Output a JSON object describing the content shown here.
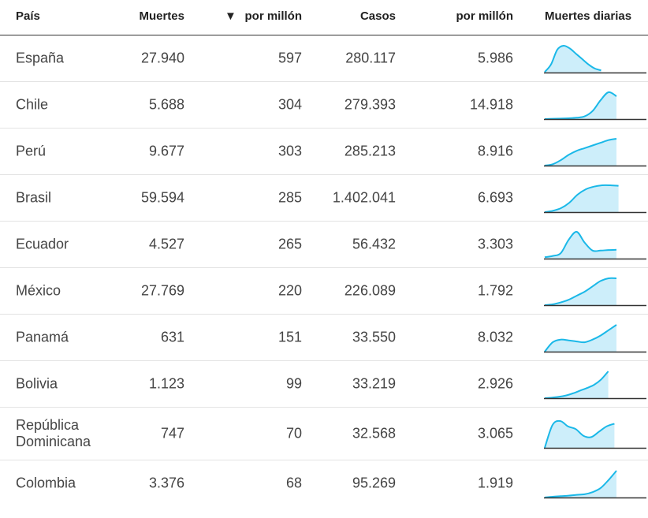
{
  "headers": {
    "country": "País",
    "deaths": "Muertes",
    "deaths_per_million": "por millón",
    "cases": "Casos",
    "cases_per_million": "por millón",
    "daily_deaths": "Muertes diarias"
  },
  "sort_indicator": "▼",
  "colors": {
    "line": "#1ab8e8",
    "fill": "#cdeefa",
    "baseline": "#333333"
  },
  "chart_data": {
    "type": "table",
    "columns": [
      "País",
      "Muertes",
      "por millón",
      "Casos",
      "por millón",
      "Muertes diarias"
    ],
    "rows": [
      {
        "country": "España",
        "deaths": "27.940",
        "deaths_pm": "597",
        "cases": "280.117",
        "cases_pm": "5.986",
        "daily": [
          0.02,
          0.3,
          0.85,
          1.0,
          0.9,
          0.7,
          0.5,
          0.3,
          0.15,
          0.08
        ],
        "extent": 0.55
      },
      {
        "country": "Chile",
        "deaths": "5.688",
        "deaths_pm": "304",
        "cases": "279.393",
        "cases_pm": "14.918",
        "daily": [
          0.0,
          0.01,
          0.02,
          0.03,
          0.05,
          0.1,
          0.3,
          0.7,
          1.0,
          0.85
        ],
        "extent": 0.7
      },
      {
        "country": "Perú",
        "deaths": "9.677",
        "deaths_pm": "303",
        "cases": "285.213",
        "cases_pm": "8.916",
        "daily": [
          0.0,
          0.05,
          0.2,
          0.4,
          0.55,
          0.65,
          0.75,
          0.85,
          0.95,
          1.0
        ],
        "extent": 0.7
      },
      {
        "country": "Brasil",
        "deaths": "59.594",
        "deaths_pm": "285",
        "cases": "1.402.041",
        "cases_pm": "6.693",
        "daily": [
          0.0,
          0.05,
          0.15,
          0.35,
          0.65,
          0.85,
          0.95,
          1.0,
          1.0,
          0.98
        ],
        "extent": 0.72
      },
      {
        "country": "Ecuador",
        "deaths": "4.527",
        "deaths_pm": "265",
        "cases": "56.432",
        "cases_pm": "3.303",
        "daily": [
          0.05,
          0.1,
          0.2,
          0.7,
          1.0,
          0.6,
          0.3,
          0.3,
          0.32,
          0.33
        ],
        "extent": 0.7
      },
      {
        "country": "México",
        "deaths": "27.769",
        "deaths_pm": "220",
        "cases": "226.089",
        "cases_pm": "1.792",
        "daily": [
          0.0,
          0.03,
          0.1,
          0.2,
          0.35,
          0.5,
          0.7,
          0.9,
          1.0,
          1.0
        ],
        "extent": 0.7
      },
      {
        "country": "Panamá",
        "deaths": "631",
        "deaths_pm": "151",
        "cases": "33.550",
        "cases_pm": "8.032",
        "daily": [
          0.0,
          0.35,
          0.45,
          0.42,
          0.38,
          0.35,
          0.45,
          0.6,
          0.8,
          1.0
        ],
        "extent": 0.7
      },
      {
        "country": "Bolivia",
        "deaths": "1.123",
        "deaths_pm": "99",
        "cases": "33.219",
        "cases_pm": "2.926",
        "daily": [
          0.0,
          0.02,
          0.05,
          0.1,
          0.18,
          0.28,
          0.38,
          0.5,
          0.7,
          1.0
        ],
        "extent": 0.62
      },
      {
        "country": "República Dominicana",
        "deaths": "747",
        "deaths_pm": "70",
        "cases": "32.568",
        "cases_pm": "3.065",
        "daily": [
          0.0,
          0.85,
          1.0,
          0.8,
          0.7,
          0.45,
          0.4,
          0.6,
          0.8,
          0.9
        ],
        "extent": 0.68
      },
      {
        "country": "Colombia",
        "deaths": "3.376",
        "deaths_pm": "68",
        "cases": "95.269",
        "cases_pm": "1.919",
        "daily": [
          0.0,
          0.03,
          0.05,
          0.07,
          0.1,
          0.12,
          0.2,
          0.35,
          0.65,
          1.0
        ],
        "extent": 0.7
      }
    ]
  }
}
